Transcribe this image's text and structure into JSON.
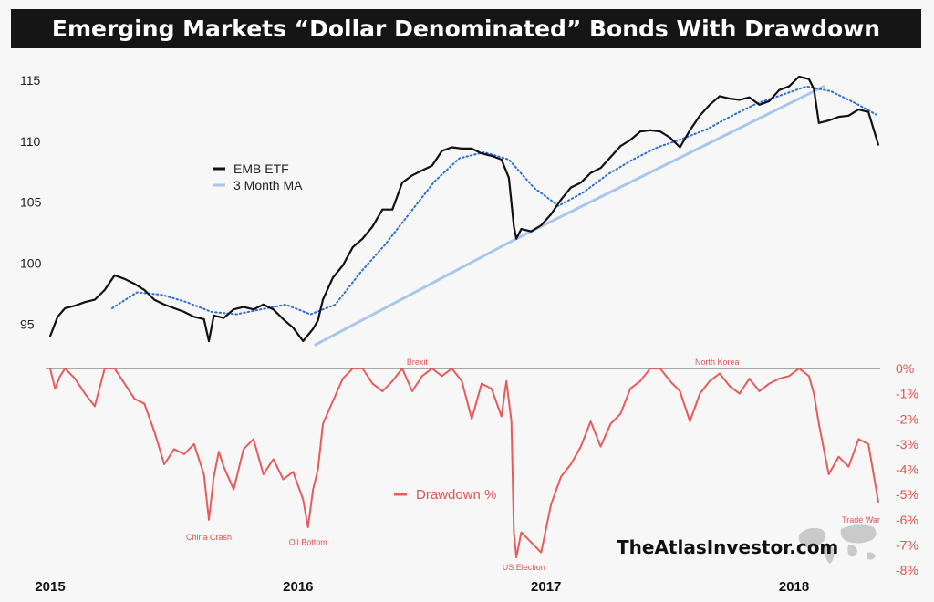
{
  "title": "Emerging Markets “Dollar Denominated” Bonds With Drawdown",
  "watermark": "TheAtlasInvestor.com",
  "colors": {
    "background": "#f7f7f7",
    "title_bar": "#151515",
    "price_line": "#111111",
    "moving_average": "#2d6fd6",
    "trendline": "#a9c6ec",
    "drawdown": "#e85b5b",
    "drawdown_axis": "#e0504f"
  },
  "chart_data": [
    {
      "type": "line",
      "title": "",
      "xlabel": "",
      "ylabel": "",
      "x_ticks": [
        "2015",
        "2016",
        "2017",
        "2018"
      ],
      "y_ticks": [
        "95",
        "100",
        "105",
        "110",
        "115"
      ],
      "xlim": [
        2015.0,
        2018.34
      ],
      "ylim": [
        93.0,
        116.5
      ],
      "grid": false,
      "legend_position": "upper-left",
      "series": [
        {
          "name": "EMB ETF",
          "x": [
            2015.0,
            2015.03,
            2015.06,
            2015.1,
            2015.14,
            2015.18,
            2015.22,
            2015.26,
            2015.3,
            2015.34,
            2015.38,
            2015.42,
            2015.46,
            2015.5,
            2015.54,
            2015.58,
            2015.62,
            2015.64,
            2015.66,
            2015.7,
            2015.74,
            2015.78,
            2015.82,
            2015.86,
            2015.9,
            2015.94,
            2015.98,
            2016.02,
            2016.06,
            2016.08,
            2016.1,
            2016.14,
            2016.18,
            2016.22,
            2016.26,
            2016.3,
            2016.34,
            2016.38,
            2016.42,
            2016.46,
            2016.5,
            2016.54,
            2016.58,
            2016.62,
            2016.66,
            2016.7,
            2016.74,
            2016.78,
            2016.82,
            2016.85,
            2016.87,
            2016.88,
            2016.9,
            2016.94,
            2016.98,
            2017.02,
            2017.06,
            2017.1,
            2017.14,
            2017.18,
            2017.22,
            2017.26,
            2017.3,
            2017.34,
            2017.38,
            2017.42,
            2017.46,
            2017.5,
            2017.54,
            2017.58,
            2017.62,
            2017.66,
            2017.7,
            2017.74,
            2017.78,
            2017.82,
            2017.86,
            2017.9,
            2017.94,
            2017.98,
            2018.02,
            2018.06,
            2018.08,
            2018.1,
            2018.14,
            2018.18,
            2018.22,
            2018.26,
            2018.3,
            2018.34
          ],
          "values": [
            94.0,
            95.6,
            96.3,
            96.5,
            96.8,
            97.0,
            97.8,
            99.0,
            98.7,
            98.3,
            97.8,
            97.0,
            96.6,
            96.3,
            96.0,
            95.6,
            95.4,
            93.6,
            95.7,
            95.5,
            96.2,
            96.4,
            96.2,
            96.6,
            96.2,
            95.4,
            94.7,
            93.6,
            94.6,
            95.3,
            97.0,
            98.8,
            99.8,
            101.3,
            102.0,
            103.0,
            104.4,
            104.4,
            106.6,
            107.2,
            107.6,
            108.0,
            109.2,
            109.5,
            109.4,
            109.4,
            109.0,
            108.8,
            108.5,
            107.0,
            103.0,
            102.0,
            102.8,
            102.6,
            103.1,
            104.0,
            105.2,
            106.2,
            106.6,
            107.4,
            107.8,
            108.7,
            109.6,
            110.1,
            110.8,
            110.9,
            110.8,
            110.3,
            109.5,
            110.9,
            112.1,
            113.0,
            113.7,
            113.5,
            113.4,
            113.6,
            113.0,
            113.3,
            114.2,
            114.5,
            115.3,
            115.1,
            114.3,
            111.5,
            111.7,
            112.0,
            112.1,
            112.6,
            112.4,
            109.7
          ]
        },
        {
          "name": "3 Month MA",
          "x": [
            2015.25,
            2015.35,
            2015.45,
            2015.55,
            2015.65,
            2015.75,
            2015.85,
            2015.95,
            2016.05,
            2016.15,
            2016.25,
            2016.35,
            2016.45,
            2016.55,
            2016.65,
            2016.75,
            2016.85,
            2016.95,
            2017.05,
            2017.15,
            2017.25,
            2017.35,
            2017.45,
            2017.55,
            2017.65,
            2017.75,
            2017.85,
            2017.95,
            2018.05,
            2018.15,
            2018.25,
            2018.33
          ],
          "values": [
            96.3,
            97.6,
            97.4,
            96.8,
            96.0,
            95.8,
            96.2,
            96.6,
            95.8,
            96.6,
            99.2,
            101.5,
            104.1,
            106.7,
            108.6,
            109.1,
            108.5,
            106.2,
            104.7,
            105.8,
            107.3,
            108.5,
            109.5,
            110.2,
            111.0,
            112.1,
            113.1,
            113.8,
            114.5,
            114.1,
            113.1,
            112.2
          ]
        },
        {
          "name": "",
          "style": "trendline",
          "x": [
            2016.07,
            2016.88,
            2018.12
          ],
          "values": [
            93.3,
            102.0,
            114.5
          ]
        }
      ]
    },
    {
      "type": "line",
      "title": "",
      "xlabel": "",
      "ylabel": "",
      "y_ticks": [
        "0%",
        "-1%",
        "-2%",
        "-3%",
        "-4%",
        "-5%",
        "-6%",
        "-7%",
        "-8%"
      ],
      "ylim": [
        -8.0,
        0.0
      ],
      "grid": false,
      "legend_position": "center",
      "series": [
        {
          "name": "Drawdown %",
          "x": [
            2015.0,
            2015.02,
            2015.04,
            2015.06,
            2015.1,
            2015.14,
            2015.18,
            2015.22,
            2015.26,
            2015.3,
            2015.34,
            2015.38,
            2015.42,
            2015.46,
            2015.5,
            2015.54,
            2015.58,
            2015.62,
            2015.64,
            2015.66,
            2015.68,
            2015.7,
            2015.74,
            2015.78,
            2015.82,
            2015.86,
            2015.9,
            2015.94,
            2015.98,
            2016.02,
            2016.04,
            2016.06,
            2016.08,
            2016.1,
            2016.14,
            2016.18,
            2016.22,
            2016.26,
            2016.3,
            2016.34,
            2016.38,
            2016.42,
            2016.46,
            2016.5,
            2016.54,
            2016.58,
            2016.62,
            2016.66,
            2016.7,
            2016.74,
            2016.78,
            2016.82,
            2016.84,
            2016.86,
            2016.87,
            2016.88,
            2016.9,
            2016.94,
            2016.98,
            2017.02,
            2017.06,
            2017.1,
            2017.14,
            2017.18,
            2017.22,
            2017.26,
            2017.3,
            2017.34,
            2017.38,
            2017.42,
            2017.46,
            2017.5,
            2017.54,
            2017.58,
            2017.62,
            2017.66,
            2017.7,
            2017.74,
            2017.78,
            2017.82,
            2017.86,
            2017.9,
            2017.94,
            2017.98,
            2018.02,
            2018.06,
            2018.08,
            2018.1,
            2018.14,
            2018.18,
            2018.22,
            2018.26,
            2018.3,
            2018.34
          ],
          "values": [
            0.0,
            -0.8,
            -0.3,
            0.0,
            -0.4,
            -1.0,
            -1.5,
            0.0,
            0.0,
            -0.6,
            -1.2,
            -1.4,
            -2.5,
            -3.8,
            -3.2,
            -3.4,
            -3.0,
            -4.2,
            -6.0,
            -4.3,
            -3.3,
            -3.9,
            -4.8,
            -3.2,
            -2.8,
            -4.2,
            -3.6,
            -4.4,
            -4.1,
            -5.2,
            -6.3,
            -4.8,
            -4.0,
            -2.2,
            -1.3,
            -0.4,
            0.0,
            0.0,
            -0.6,
            -0.9,
            -0.5,
            0.0,
            -0.9,
            -0.3,
            0.0,
            -0.3,
            0.0,
            -0.5,
            -2.0,
            -0.6,
            -0.8,
            -1.9,
            -0.5,
            -2.1,
            -6.5,
            -7.5,
            -6.5,
            -6.9,
            -7.3,
            -5.4,
            -4.3,
            -3.8,
            -3.1,
            -2.1,
            -3.1,
            -2.2,
            -1.8,
            -0.8,
            -0.5,
            0.0,
            0.0,
            -0.5,
            -0.9,
            -2.1,
            -1.0,
            -0.5,
            -0.2,
            -0.7,
            -1.0,
            -0.4,
            -0.9,
            -0.6,
            -0.4,
            -0.3,
            0.0,
            -0.3,
            -1.0,
            -2.2,
            -4.2,
            -3.5,
            -3.9,
            -2.8,
            -3.0,
            -5.3
          ]
        }
      ],
      "annotations": [
        {
          "text": "Brexit",
          "x": 2016.48,
          "y": 0.25
        },
        {
          "text": "North Korea",
          "x": 2017.69,
          "y": 0.25
        },
        {
          "text": "China Crash",
          "x": 2015.64,
          "y": -6.7
        },
        {
          "text": "Oil Bottom",
          "x": 2016.04,
          "y": -6.9
        },
        {
          "text": "US Election",
          "x": 2016.91,
          "y": -7.9
        },
        {
          "text": "Trade War",
          "x": 2018.27,
          "y": -6.0
        }
      ]
    }
  ]
}
